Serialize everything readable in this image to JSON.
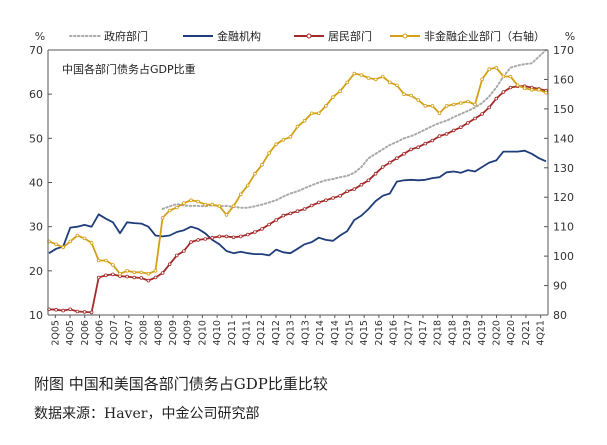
{
  "caption": "附图 中国和美国各部门债务占GDP比重比较",
  "source": "数据来源：Haver，中金公司研究部",
  "chart_data": {
    "type": "line",
    "title": "中国各部门债务占GDP比重",
    "left_unit": "%",
    "right_unit": "%",
    "y_left_lim": [
      10,
      70
    ],
    "y_right_lim": [
      80,
      170
    ],
    "y_left_ticks": [
      10,
      20,
      30,
      40,
      50,
      60,
      70
    ],
    "y_right_ticks": [
      80,
      90,
      100,
      110,
      120,
      130,
      140,
      150,
      160,
      170
    ],
    "x_tick_labels": [
      "2Q05",
      "4Q05",
      "2Q06",
      "4Q06",
      "2Q07",
      "4Q07",
      "2Q08",
      "4Q08",
      "2Q09",
      "4Q09",
      "2Q10",
      "4Q10",
      "2Q11",
      "4Q11",
      "2Q12",
      "4Q12",
      "2Q13",
      "4Q13",
      "2Q14",
      "4Q14",
      "2Q15",
      "4Q15",
      "2Q16",
      "4Q16",
      "2Q17",
      "4Q17",
      "2Q18",
      "4Q18",
      "2Q19",
      "4Q19",
      "2Q20",
      "4Q20",
      "2Q21",
      "4Q21"
    ],
    "grid": false,
    "legend_position": "top",
    "series": [
      {
        "name": "政府部门",
        "axis": "left",
        "color": "#a9a9a9",
        "style": "dotted",
        "values": [
          null,
          null,
          null,
          null,
          null,
          null,
          null,
          null,
          null,
          null,
          null,
          null,
          null,
          null,
          null,
          null,
          34.0,
          34.6,
          35.1,
          34.8,
          34.7,
          34.7,
          34.6,
          34.9,
          34.6,
          34.7,
          34.5,
          34.3,
          34.3,
          34.6,
          35.0,
          35.5,
          36.0,
          36.8,
          37.5,
          38.0,
          38.7,
          39.4,
          40.0,
          40.5,
          40.8,
          41.2,
          41.5,
          42.2,
          43.5,
          45.5,
          46.5,
          47.5,
          48.5,
          49.2,
          50.0,
          50.5,
          51.2,
          52.0,
          52.8,
          53.5,
          54.0,
          54.8,
          55.5,
          56.2,
          57.0,
          58.0,
          59.5,
          61.5,
          64.0,
          66.0,
          66.5,
          66.8,
          67.0,
          68.5,
          70.0
        ]
      },
      {
        "name": "金融机构",
        "axis": "left",
        "color": "#1f3d7a",
        "style": "solid",
        "values": [
          24.0,
          25.0,
          25.5,
          29.8,
          30.0,
          30.4,
          30.0,
          32.8,
          31.8,
          31.0,
          28.5,
          31.0,
          30.8,
          30.7,
          30.0,
          28.0,
          27.8,
          28.0,
          28.8,
          29.2,
          30.0,
          29.5,
          28.5,
          27.0,
          26.0,
          24.5,
          24.0,
          24.3,
          24.0,
          23.8,
          23.8,
          23.5,
          24.8,
          24.2,
          24.0,
          25.0,
          26.0,
          26.5,
          27.5,
          27.0,
          26.8,
          28.0,
          29.0,
          31.5,
          32.5,
          34.0,
          35.8,
          37.0,
          37.5,
          40.2,
          40.5,
          40.6,
          40.5,
          40.6,
          41.0,
          41.2,
          42.3,
          42.5,
          42.2,
          42.8,
          42.5,
          43.5,
          44.5,
          45.0,
          47.0,
          47.0,
          47.0,
          47.2,
          46.5,
          45.5,
          44.8
        ]
      },
      {
        "name": "居民部门",
        "axis": "left",
        "color": "#a52a2a",
        "style": "solid-marker",
        "values": [
          11.3,
          11.2,
          11.0,
          11.3,
          10.8,
          10.7,
          10.6,
          18.5,
          19.0,
          19.2,
          18.8,
          18.7,
          18.5,
          18.4,
          17.8,
          18.5,
          19.5,
          21.5,
          23.5,
          24.5,
          26.5,
          27.0,
          27.2,
          27.5,
          27.8,
          27.8,
          27.6,
          27.8,
          28.2,
          28.8,
          29.5,
          30.5,
          31.5,
          32.5,
          33.0,
          33.5,
          34.0,
          34.8,
          35.5,
          36.0,
          36.5,
          37.0,
          38.0,
          38.5,
          39.5,
          40.5,
          42.0,
          43.5,
          44.5,
          45.5,
          46.5,
          47.5,
          48.0,
          48.8,
          49.5,
          50.5,
          51.0,
          51.8,
          52.5,
          53.5,
          54.5,
          55.5,
          57.0,
          59.0,
          60.5,
          61.5,
          61.8,
          61.8,
          61.5,
          61.2,
          60.8
        ]
      },
      {
        "name": "非金融企业部门（右轴）",
        "axis": "right",
        "color": "#d4a017",
        "style": "solid-marker",
        "values": [
          105.0,
          104.0,
          103.0,
          105.0,
          107.0,
          106.0,
          104.5,
          98.5,
          98.5,
          97.0,
          94.0,
          95.0,
          94.5,
          94.5,
          94.0,
          95.0,
          113.0,
          115.5,
          116.5,
          118.0,
          119.0,
          118.5,
          117.5,
          117.5,
          117.0,
          114.0,
          117.0,
          121.0,
          124.0,
          128.0,
          131.0,
          135.0,
          138.0,
          139.5,
          140.5,
          144.0,
          146.0,
          148.5,
          148.5,
          151.0,
          154.0,
          156.0,
          159.0,
          162.0,
          161.5,
          160.5,
          160.0,
          161.0,
          159.0,
          158.0,
          155.0,
          154.5,
          153.0,
          151.0,
          151.0,
          148.5,
          151.0,
          151.5,
          152.0,
          152.5,
          151.5,
          160.0,
          163.5,
          164.0,
          161.0,
          161.0,
          158.0,
          157.0,
          156.5,
          156.5,
          155.5
        ]
      }
    ]
  }
}
